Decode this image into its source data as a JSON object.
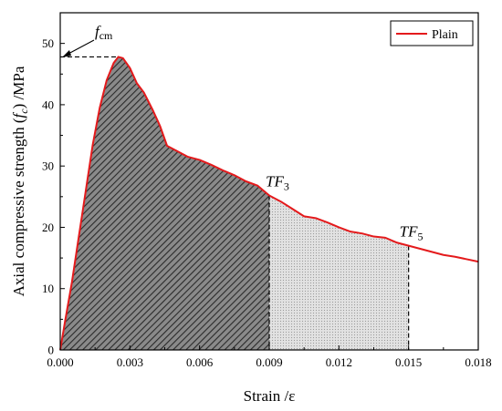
{
  "chart_data": {
    "type": "line",
    "xlabel": "Strain /ε",
    "ylabel_main": "Axial compressive strength (",
    "ylabel_f": "f",
    "ylabel_sub": "c",
    "ylabel_tail": ") /MPa",
    "xlim": [
      0.0,
      0.018
    ],
    "ylim": [
      0,
      55
    ],
    "xticks": [
      "0.000",
      "0.003",
      "0.006",
      "0.009",
      "0.012",
      "0.015",
      "0.018"
    ],
    "yticks": [
      "0",
      "10",
      "20",
      "30",
      "40",
      "50"
    ],
    "legend": {
      "position": "top-right",
      "label": "Plain"
    },
    "series": [
      {
        "name": "Plain",
        "color": "#e41a1c",
        "x": [
          0.0,
          0.0002,
          0.0005,
          0.0008,
          0.0011,
          0.0014,
          0.0017,
          0.002,
          0.0023,
          0.0025,
          0.0027,
          0.003,
          0.0033,
          0.0036,
          0.004,
          0.0043,
          0.0046,
          0.005,
          0.0055,
          0.006,
          0.0065,
          0.007,
          0.0075,
          0.008,
          0.0085,
          0.009,
          0.0095,
          0.01,
          0.0105,
          0.011,
          0.0115,
          0.012,
          0.0125,
          0.013,
          0.0135,
          0.014,
          0.0145,
          0.015,
          0.0155,
          0.016,
          0.0165,
          0.017,
          0.0175,
          0.018
        ],
        "y": [
          0.0,
          4.5,
          11.0,
          18.5,
          26.0,
          33.5,
          39.5,
          44.0,
          46.8,
          47.8,
          47.6,
          46.0,
          43.5,
          42.0,
          39.0,
          36.5,
          33.3,
          32.5,
          31.5,
          31.0,
          30.2,
          29.3,
          28.5,
          27.5,
          26.8,
          25.2,
          24.2,
          23.0,
          21.8,
          21.5,
          20.8,
          20.0,
          19.3,
          19.0,
          18.5,
          18.3,
          17.5,
          17.0,
          16.5,
          16.0,
          15.5,
          15.2,
          14.8,
          14.4
        ]
      }
    ],
    "annotations": {
      "fcm": {
        "base": "f",
        "sub": "cm",
        "x": 0.0025,
        "y": 47.8
      },
      "tf3": {
        "base": "TF",
        "sub": "3",
        "x": 0.009,
        "y": 25.2
      },
      "tf5": {
        "base": "TF",
        "sub": "5",
        "x": 0.015,
        "y": 17.0
      }
    },
    "shaded_regions": [
      {
        "name": "area-to-tf3",
        "from": 0.0,
        "to": 0.009,
        "pattern": "dark-hatch"
      },
      {
        "name": "area-tf3-to-tf5",
        "from": 0.009,
        "to": 0.015,
        "pattern": "light-dots"
      }
    ]
  }
}
